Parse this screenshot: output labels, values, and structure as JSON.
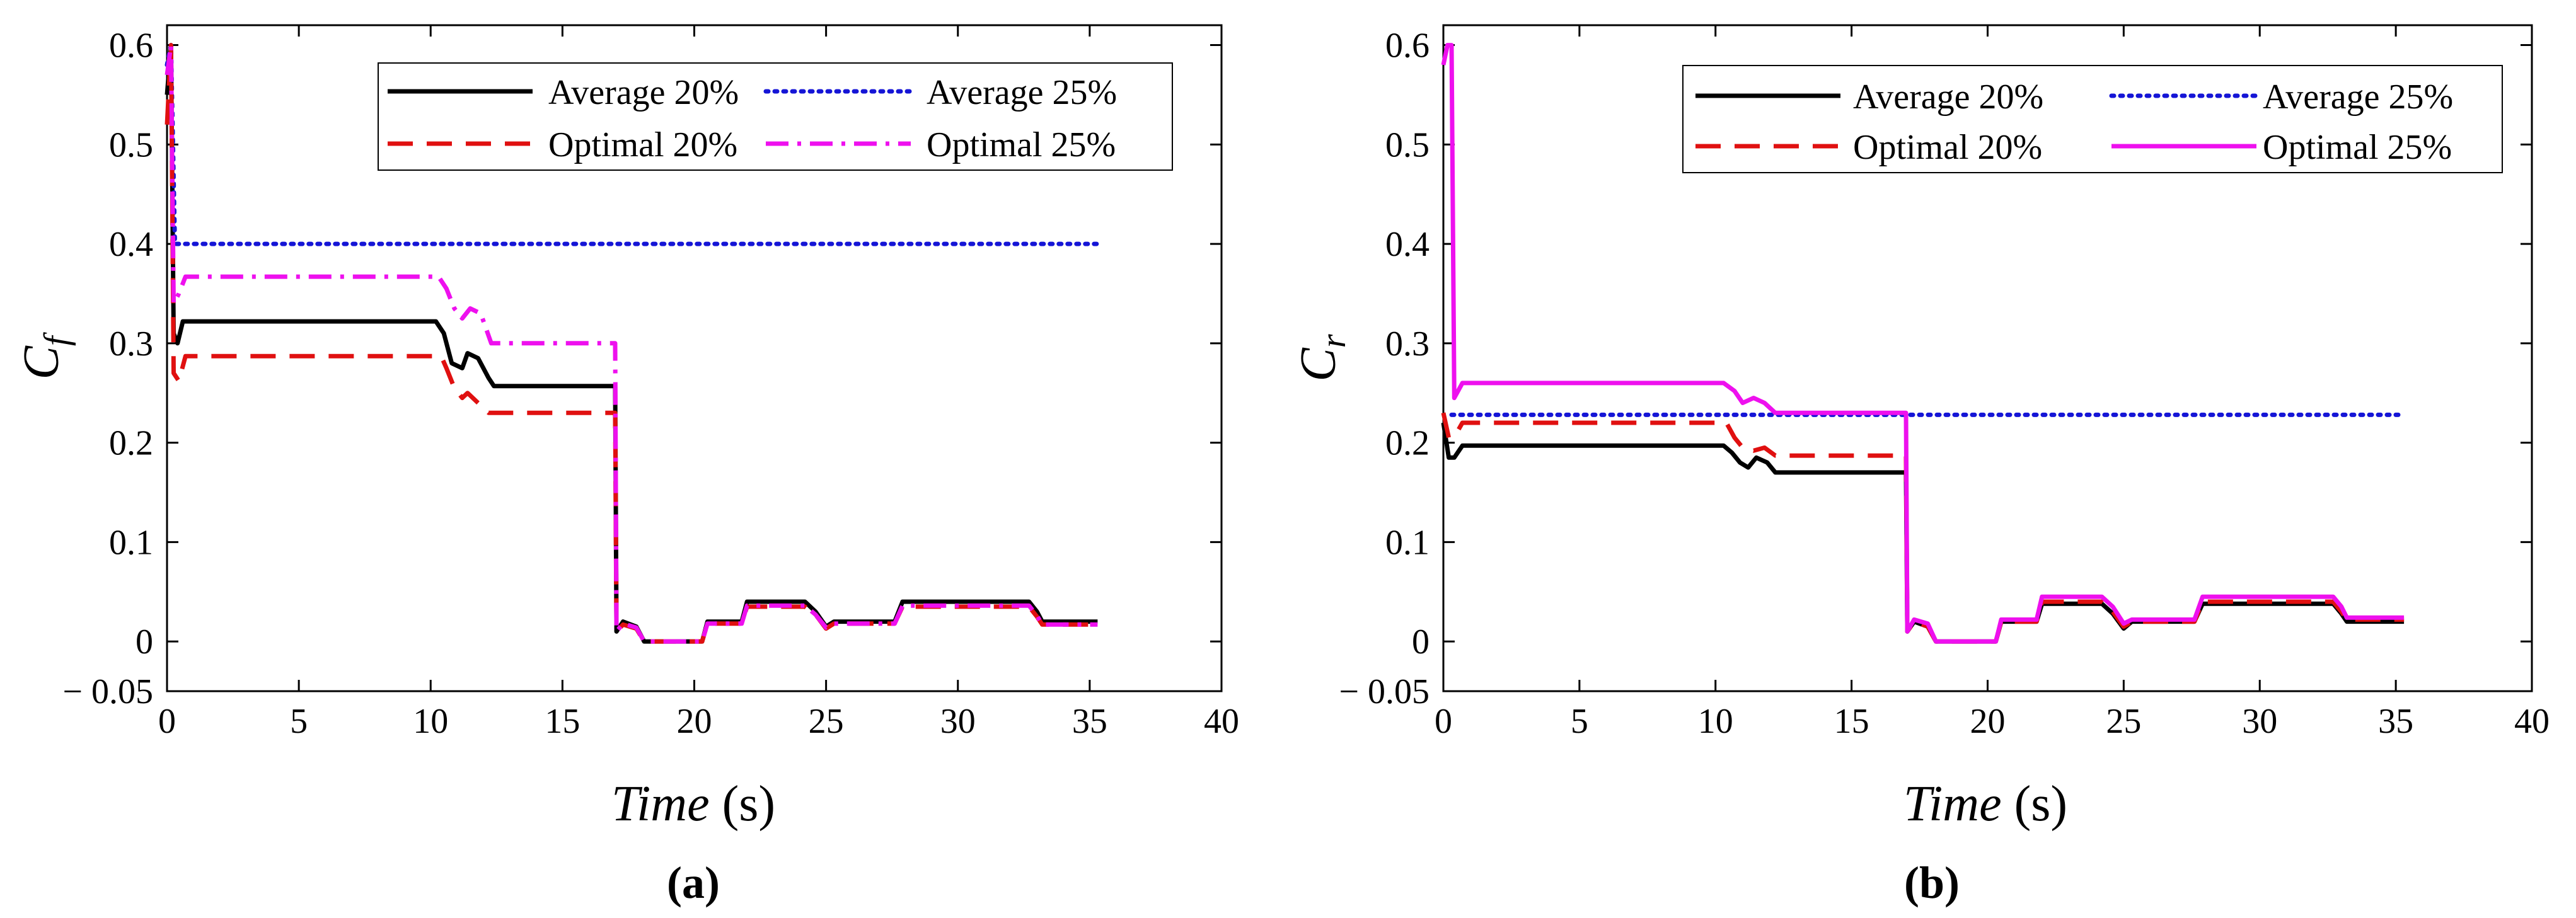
{
  "figure": {
    "panel_labels": [
      "(a)",
      "(b)"
    ]
  },
  "chart_data": [
    {
      "type": "line",
      "panel": "(a)",
      "xlabel": "Time",
      "xlabel_unit": "(s)",
      "ylabel_main": "C",
      "ylabel_sub": "f",
      "xlim": [
        0,
        40
      ],
      "ylim": [
        -0.05,
        0.62
      ],
      "xticks": [
        0,
        5,
        10,
        15,
        20,
        25,
        30,
        35,
        40
      ],
      "yticks": [
        -0.05,
        0,
        0.1,
        0.2,
        0.3,
        0.4,
        0.5,
        0.6
      ],
      "ytick_labels": [
        "− 0.05",
        "0",
        "0.1",
        "0.2",
        "0.3",
        "0.4",
        "0.5",
        "0.6"
      ],
      "legend_position": "top-right",
      "series": [
        {
          "name": "Average 20%",
          "color": "#000000",
          "style": "solid",
          "points": [
            [
              0,
              0.55
            ],
            [
              0.15,
              0.6
            ],
            [
              0.25,
              0.31
            ],
            [
              0.4,
              0.3
            ],
            [
              0.6,
              0.322
            ],
            [
              10.2,
              0.322
            ],
            [
              10.5,
              0.31
            ],
            [
              10.8,
              0.28
            ],
            [
              11.2,
              0.275
            ],
            [
              11.4,
              0.29
            ],
            [
              11.8,
              0.285
            ],
            [
              12.2,
              0.265
            ],
            [
              12.4,
              0.257
            ],
            [
              17.0,
              0.257
            ],
            [
              17.05,
              0.01
            ],
            [
              17.3,
              0.02
            ],
            [
              17.8,
              0.015
            ],
            [
              18.1,
              0.0
            ],
            [
              20.3,
              0.0
            ],
            [
              20.5,
              0.02
            ],
            [
              21.8,
              0.02
            ],
            [
              22.0,
              0.04
            ],
            [
              24.2,
              0.04
            ],
            [
              24.6,
              0.03
            ],
            [
              25.0,
              0.015
            ],
            [
              25.3,
              0.02
            ],
            [
              27.6,
              0.02
            ],
            [
              27.9,
              0.04
            ],
            [
              32.7,
              0.04
            ],
            [
              33.0,
              0.03
            ],
            [
              33.2,
              0.02
            ],
            [
              35.3,
              0.02
            ]
          ]
        },
        {
          "name": "Average 25%",
          "color": "#1515d6",
          "style": "dotted",
          "points": [
            [
              0,
              0.58
            ],
            [
              0.15,
              0.6
            ],
            [
              0.3,
              0.4
            ],
            [
              35.3,
              0.4
            ]
          ]
        },
        {
          "name": "Optimal 20%",
          "color": "#e01010",
          "style": "dashed",
          "points": [
            [
              0,
              0.52
            ],
            [
              0.15,
              0.6
            ],
            [
              0.25,
              0.27
            ],
            [
              0.45,
              0.262
            ],
            [
              0.7,
              0.287
            ],
            [
              10.4,
              0.287
            ],
            [
              10.6,
              0.275
            ],
            [
              10.9,
              0.255
            ],
            [
              11.2,
              0.245
            ],
            [
              11.4,
              0.25
            ],
            [
              11.8,
              0.24
            ],
            [
              12.2,
              0.23
            ],
            [
              17.0,
              0.23
            ],
            [
              17.05,
              0.01
            ],
            [
              17.3,
              0.017
            ],
            [
              17.8,
              0.013
            ],
            [
              18.1,
              0.0
            ],
            [
              20.3,
              0.0
            ],
            [
              20.5,
              0.018
            ],
            [
              21.8,
              0.018
            ],
            [
              22.0,
              0.035
            ],
            [
              24.2,
              0.035
            ],
            [
              24.6,
              0.027
            ],
            [
              25.0,
              0.013
            ],
            [
              25.3,
              0.018
            ],
            [
              27.6,
              0.018
            ],
            [
              27.9,
              0.035
            ],
            [
              32.7,
              0.035
            ],
            [
              33.0,
              0.025
            ],
            [
              33.2,
              0.017
            ],
            [
              35.3,
              0.017
            ]
          ]
        },
        {
          "name": "Optimal 25%",
          "color": "#ee10ee",
          "style": "dashdot",
          "points": [
            [
              0,
              0.57
            ],
            [
              0.15,
              0.6
            ],
            [
              0.25,
              0.34
            ],
            [
              0.45,
              0.35
            ],
            [
              0.7,
              0.367
            ],
            [
              10.3,
              0.367
            ],
            [
              10.6,
              0.355
            ],
            [
              10.9,
              0.335
            ],
            [
              11.2,
              0.325
            ],
            [
              11.5,
              0.335
            ],
            [
              11.9,
              0.33
            ],
            [
              12.3,
              0.3
            ],
            [
              17.0,
              0.3
            ],
            [
              17.05,
              0.01
            ],
            [
              17.3,
              0.018
            ],
            [
              17.8,
              0.014
            ],
            [
              18.1,
              0.0
            ],
            [
              20.3,
              0.0
            ],
            [
              20.5,
              0.018
            ],
            [
              21.8,
              0.018
            ],
            [
              22.0,
              0.036
            ],
            [
              24.2,
              0.036
            ],
            [
              24.6,
              0.027
            ],
            [
              25.0,
              0.014
            ],
            [
              25.3,
              0.018
            ],
            [
              27.6,
              0.018
            ],
            [
              27.9,
              0.036
            ],
            [
              32.7,
              0.036
            ],
            [
              33.0,
              0.026
            ],
            [
              33.2,
              0.017
            ],
            [
              35.3,
              0.017
            ]
          ]
        }
      ]
    },
    {
      "type": "line",
      "panel": "(b)",
      "xlabel": "Time",
      "xlabel_unit": "(s)",
      "ylabel_main": "C",
      "ylabel_sub": "r",
      "xlim": [
        0,
        40
      ],
      "ylim": [
        -0.05,
        0.62
      ],
      "xticks": [
        0,
        5,
        10,
        15,
        20,
        25,
        30,
        35,
        40
      ],
      "yticks": [
        -0.05,
        0,
        0.1,
        0.2,
        0.3,
        0.4,
        0.5,
        0.6
      ],
      "ytick_labels": [
        "− 0.05",
        "0",
        "0.1",
        "0.2",
        "0.3",
        "0.4",
        "0.5",
        "0.6"
      ],
      "legend_position": "top-right",
      "series": [
        {
          "name": "Average 20%",
          "color": "#000000",
          "style": "solid",
          "points": [
            [
              0,
              0.22
            ],
            [
              0.2,
              0.185
            ],
            [
              0.4,
              0.185
            ],
            [
              0.7,
              0.197
            ],
            [
              10.3,
              0.197
            ],
            [
              10.6,
              0.19
            ],
            [
              10.9,
              0.18
            ],
            [
              11.2,
              0.175
            ],
            [
              11.5,
              0.185
            ],
            [
              11.9,
              0.18
            ],
            [
              12.2,
              0.17
            ],
            [
              17.0,
              0.17
            ],
            [
              17.05,
              0.01
            ],
            [
              17.3,
              0.02
            ],
            [
              17.8,
              0.015
            ],
            [
              18.1,
              0.0
            ],
            [
              20.3,
              0.0
            ],
            [
              20.5,
              0.02
            ],
            [
              21.8,
              0.02
            ],
            [
              22.0,
              0.038
            ],
            [
              24.2,
              0.038
            ],
            [
              24.6,
              0.028
            ],
            [
              25.0,
              0.013
            ],
            [
              25.3,
              0.02
            ],
            [
              27.6,
              0.02
            ],
            [
              27.9,
              0.038
            ],
            [
              32.7,
              0.038
            ],
            [
              33.0,
              0.028
            ],
            [
              33.2,
              0.02
            ],
            [
              35.3,
              0.02
            ]
          ]
        },
        {
          "name": "Average 25%",
          "color": "#1515d6",
          "style": "dotted",
          "points": [
            [
              0.3,
              0.228
            ],
            [
              35.3,
              0.228
            ]
          ]
        },
        {
          "name": "Optimal 20%",
          "color": "#e01010",
          "style": "dashed",
          "points": [
            [
              0,
              0.23
            ],
            [
              0.2,
              0.205
            ],
            [
              0.45,
              0.208
            ],
            [
              0.7,
              0.22
            ],
            [
              10.4,
              0.22
            ],
            [
              10.7,
              0.205
            ],
            [
              11.0,
              0.195
            ],
            [
              11.4,
              0.192
            ],
            [
              11.8,
              0.195
            ],
            [
              12.2,
              0.187
            ],
            [
              17.0,
              0.187
            ],
            [
              17.05,
              0.01
            ],
            [
              17.3,
              0.02
            ],
            [
              17.8,
              0.015
            ],
            [
              18.1,
              0.0
            ],
            [
              20.3,
              0.0
            ],
            [
              20.5,
              0.02
            ],
            [
              21.8,
              0.02
            ],
            [
              22.0,
              0.04
            ],
            [
              24.2,
              0.04
            ],
            [
              24.6,
              0.03
            ],
            [
              25.0,
              0.015
            ],
            [
              25.3,
              0.02
            ],
            [
              27.6,
              0.02
            ],
            [
              27.9,
              0.04
            ],
            [
              32.7,
              0.04
            ],
            [
              33.0,
              0.03
            ],
            [
              33.2,
              0.022
            ],
            [
              35.3,
              0.022
            ]
          ]
        },
        {
          "name": "Optimal 25%",
          "color": "#ee10ee",
          "style": "solid",
          "points": [
            [
              0,
              0.58
            ],
            [
              0.15,
              0.6
            ],
            [
              0.3,
              0.6
            ],
            [
              0.4,
              0.245
            ],
            [
              0.7,
              0.26
            ],
            [
              10.3,
              0.26
            ],
            [
              10.7,
              0.252
            ],
            [
              11.0,
              0.24
            ],
            [
              11.4,
              0.245
            ],
            [
              11.8,
              0.24
            ],
            [
              12.2,
              0.23
            ],
            [
              17.0,
              0.23
            ],
            [
              17.05,
              0.01
            ],
            [
              17.3,
              0.022
            ],
            [
              17.8,
              0.018
            ],
            [
              18.1,
              0.0
            ],
            [
              20.3,
              0.0
            ],
            [
              20.5,
              0.022
            ],
            [
              21.8,
              0.022
            ],
            [
              22.0,
              0.045
            ],
            [
              24.2,
              0.045
            ],
            [
              24.6,
              0.035
            ],
            [
              25.0,
              0.018
            ],
            [
              25.3,
              0.022
            ],
            [
              27.6,
              0.022
            ],
            [
              27.9,
              0.045
            ],
            [
              32.7,
              0.045
            ],
            [
              33.0,
              0.035
            ],
            [
              33.2,
              0.024
            ],
            [
              35.3,
              0.024
            ]
          ]
        }
      ]
    }
  ]
}
